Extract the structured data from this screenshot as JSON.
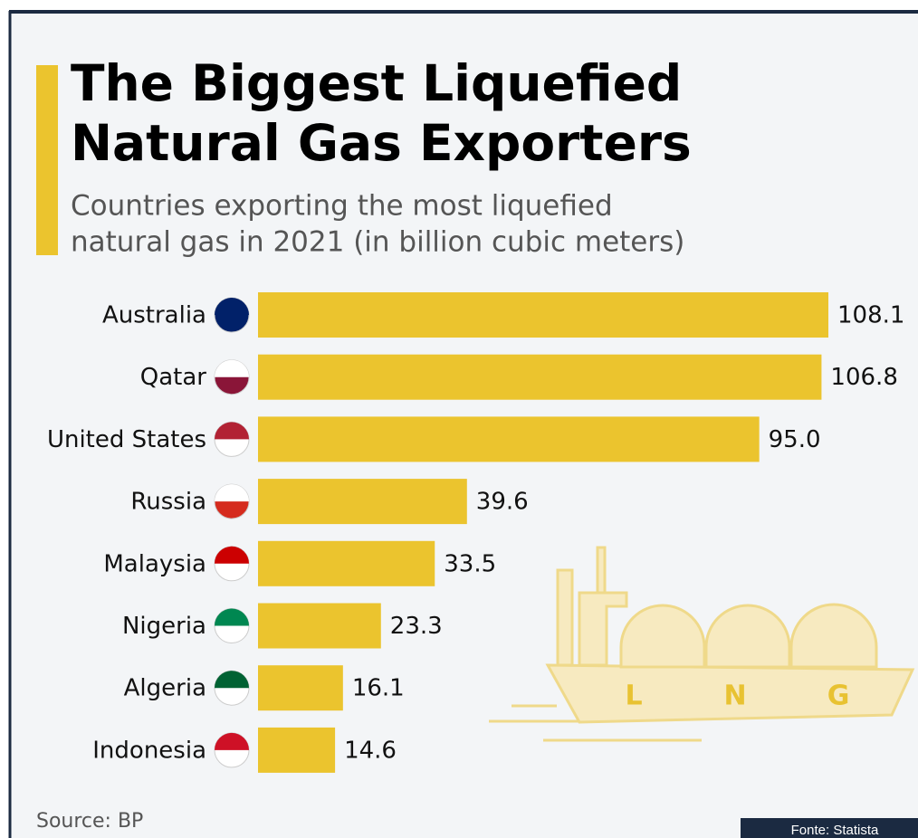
{
  "chart_data": {
    "type": "bar",
    "orientation": "horizontal",
    "title": [
      "The Biggest Liquefied",
      "Natural Gas Exporters"
    ],
    "subtitle": [
      "Countries exporting the most liquefied",
      "natural gas in 2021 (in billion cubic meters)"
    ],
    "categories": [
      "Australia",
      "Qatar",
      "United States",
      "Russia",
      "Malaysia",
      "Nigeria",
      "Algeria",
      "Indonesia"
    ],
    "values": [
      108.1,
      106.8,
      95.0,
      39.6,
      33.5,
      23.3,
      16.1,
      14.6
    ],
    "value_labels": [
      "108.1",
      "106.8",
      "95.0",
      "39.6",
      "33.5",
      "23.3",
      "16.1",
      "14.6"
    ],
    "color": "#ebc42e",
    "source": "Source: BP",
    "credit": "Fonte: Statista",
    "illustration_letters": [
      "L",
      "N",
      "G"
    ]
  }
}
